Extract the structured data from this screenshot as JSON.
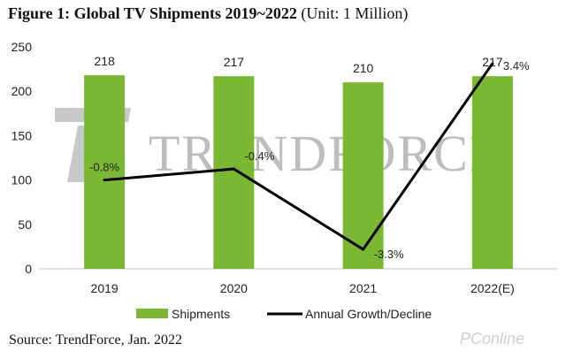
{
  "title": {
    "bold": "Figure 1: Global TV Shipments 2019~2022",
    "rest": " (Unit: 1 Million)"
  },
  "source": "Source: TrendForce, Jan. 2022",
  "watermark": "TRENDFORCE",
  "corner_watermark": "PConline",
  "colors": {
    "bar": "#7ab833",
    "line": "#000000",
    "axis": "#bfbfbf"
  },
  "chart_data": {
    "type": "bar",
    "categories": [
      "2019",
      "2020",
      "2021",
      "2022(E)"
    ],
    "ylim": [
      0,
      250
    ],
    "yticks": [
      0,
      50,
      100,
      150,
      200,
      250
    ],
    "series": [
      {
        "name": "Shipments",
        "type": "bar",
        "values": [
          218,
          217,
          210,
          217
        ]
      },
      {
        "name": "Annual Growth/Decline",
        "type": "line",
        "values": [
          -0.8,
          -0.4,
          -3.3,
          3.4
        ],
        "labels": [
          "-0.8%",
          "-0.4%",
          "-3.3%",
          "3.4%"
        ]
      }
    ],
    "legend": "bottom"
  }
}
